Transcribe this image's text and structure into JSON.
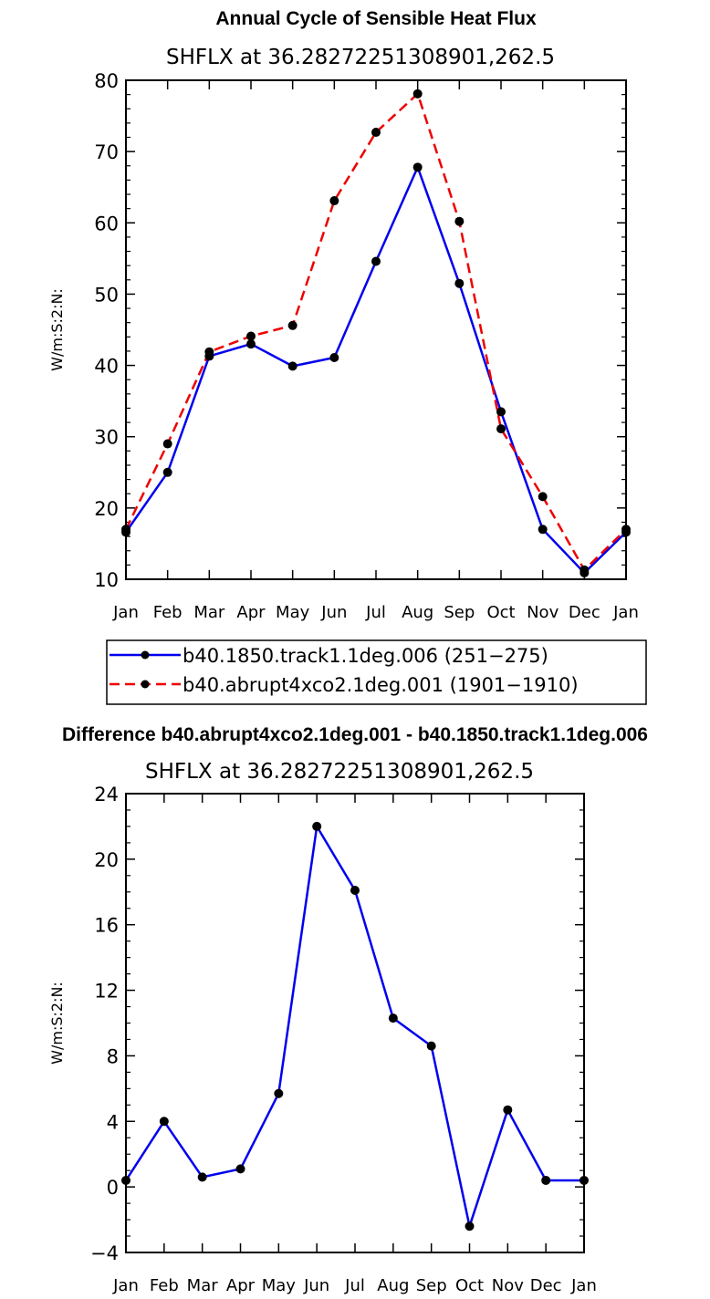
{
  "chart_data": [
    {
      "type": "line",
      "title": "Annual Cycle of Sensible Heat Flux",
      "subtitle": "SHFLX at 36.28272251308901,262.5",
      "xlabel": "",
      "ylabel": "W/m:S:2:N:",
      "categories": [
        "Jan",
        "Feb",
        "Mar",
        "Apr",
        "May",
        "Jun",
        "Jul",
        "Aug",
        "Sep",
        "Oct",
        "Nov",
        "Dec",
        "Jan"
      ],
      "ylim": [
        10,
        80
      ],
      "yticks": [
        "10",
        "20",
        "30",
        "40",
        "50",
        "60",
        "70",
        "80"
      ],
      "series": [
        {
          "name": "b40.1850.track1.1deg.006 (251−275)",
          "color": "#0000ee",
          "dash": "solid",
          "values": [
            16.6,
            25.0,
            41.3,
            43.0,
            39.9,
            41.1,
            54.6,
            67.8,
            51.5,
            33.5,
            17.0,
            10.9,
            16.6
          ]
        },
        {
          "name": "b40.abrupt4xco2.1deg.001 (1901−1910)",
          "color": "#ee0000",
          "dash": "dashed",
          "values": [
            17.0,
            29.0,
            41.9,
            44.1,
            45.6,
            63.1,
            72.7,
            78.1,
            60.2,
            31.1,
            21.6,
            11.3,
            17.0
          ]
        }
      ],
      "legend": "bottom"
    },
    {
      "type": "line",
      "title": "Difference b40.abrupt4xco2.1deg.001 - b40.1850.track1.1deg.006",
      "subtitle": "SHFLX at 36.28272251308901,262.5",
      "xlabel": "",
      "ylabel": "W/m:S:2:N:",
      "categories": [
        "Jan",
        "Feb",
        "Mar",
        "Apr",
        "May",
        "Jun",
        "Jul",
        "Aug",
        "Sep",
        "Oct",
        "Nov",
        "Dec",
        "Jan"
      ],
      "ylim": [
        -4,
        24
      ],
      "yticks": [
        "−4",
        "0",
        "4",
        "8",
        "12",
        "16",
        "20",
        "24"
      ],
      "series": [
        {
          "name": "difference",
          "color": "#0000ee",
          "dash": "solid",
          "values": [
            0.4,
            4.0,
            0.6,
            1.1,
            5.7,
            22.0,
            18.1,
            10.3,
            8.6,
            -2.4,
            4.7,
            0.4,
            0.4
          ]
        }
      ]
    }
  ]
}
